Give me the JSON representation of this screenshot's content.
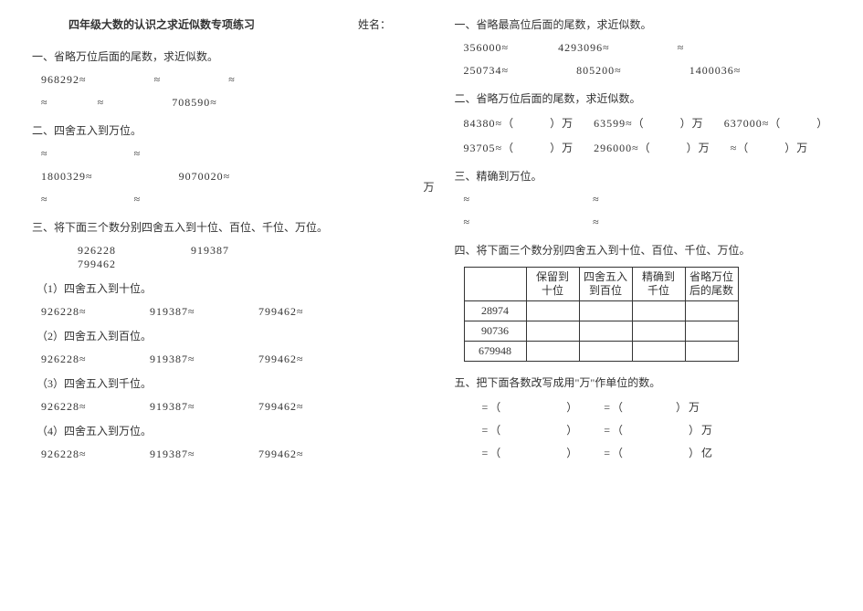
{
  "left": {
    "title": "四年级大数的认识之求近似数专项练习",
    "name_label": "姓名：",
    "s1": {
      "heading": "一、省略万位后面的尾数，求近似数。",
      "r1a": "968292≈",
      "r1b": "≈",
      "r1c": "≈",
      "r2a": "≈",
      "r2b": "≈",
      "r2c": "708590≈"
    },
    "s2": {
      "heading": "二、四舍五入到万位。",
      "r1a": "≈",
      "r1b": "≈",
      "r2a": "1800329≈",
      "r2b": "9070020≈",
      "r3a": "≈",
      "r3b": "≈"
    },
    "s3": {
      "heading": "三、将下面三个数分别四舍五入到十位、百位、千位、万位。",
      "n1": "926228",
      "n2": "919387",
      "n3": "799462",
      "g1": "（1）四舍五入到十位。",
      "g2": "（2）四舍五入到百位。",
      "g3": "（3）四舍五入到千位。",
      "g4": "（4）四舍五入到万位。",
      "a1": "926228≈",
      "a2": "919387≈",
      "a3": "799462≈"
    }
  },
  "right": {
    "s1": {
      "heading": "一、省略最高位后面的尾数，求近似数。",
      "r1a": "356000≈",
      "r1b": "4293096≈",
      "r1c": "≈",
      "r2a": "250734≈",
      "r2b": "805200≈",
      "r2c": "1400036≈"
    },
    "s2": {
      "heading": "二、省略万位后面的尾数，求近似数。",
      "wan_floating": "万",
      "r1a": "84380≈（　　　）万",
      "r1b": "63599≈（　　　）万",
      "r1c": "637000≈（　　　）",
      "r2a": "93705≈（　　　）万",
      "r2b": "296000≈（　　　）万",
      "r2c": "≈（　　　）万"
    },
    "s3": {
      "heading": "三、精确到万位。",
      "r1a": "≈",
      "r1b": "≈",
      "r2a": "≈",
      "r2b": "≈"
    },
    "s4": {
      "heading": "四、将下面三个数分别四舍五入到十位、百位、千位、万位。",
      "th1": "保留到\n十位",
      "th2": "四舍五入\n到百位",
      "th3": "精确到\n千位",
      "th4": "省略万位\n后的尾数",
      "rownum1": "28974",
      "rownum2": "90736",
      "rownum3": "679948"
    },
    "s5": {
      "heading": "五、把下面各数改写成用\"万\"作单位的数。",
      "l1": " =（　　　　　）　　 =（　　　　）万",
      "l2": " =（　　　　　）　　 =（　　　　　）万",
      "l3": " =（　　　　　）　　 =（　　　　　）亿"
    }
  }
}
